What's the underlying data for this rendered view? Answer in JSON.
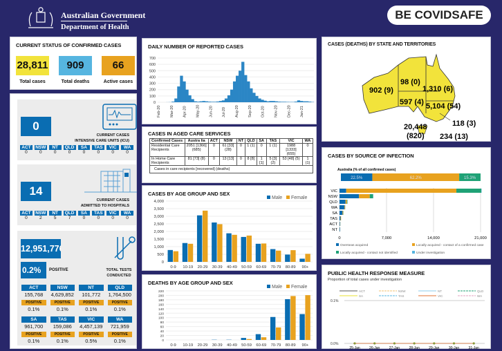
{
  "header": {
    "gov": "Australian Government",
    "dept": "Department of Health",
    "brand_a": "BE COVID",
    "brand_b": "SAFE"
  },
  "status": {
    "title": "CURRENT STATUS OF CONFIRMED CASES",
    "cards": [
      {
        "value": "28,811",
        "label": "Total cases",
        "color": "#f2e33b"
      },
      {
        "value": "909",
        "label": "Total deaths",
        "color": "#56b5e0"
      },
      {
        "value": "66",
        "label": "Active cases",
        "color": "#e8a21f"
      }
    ]
  },
  "icu": {
    "value": "0",
    "label1": "CURRENT CASES",
    "label2": "INTENSIVE CARE UNITS (ICU)",
    "states": [
      "ACT",
      "NSW",
      "NT",
      "QLD",
      "SA",
      "TAS",
      "VIC",
      "WA"
    ],
    "values": [
      "0",
      "0",
      "0",
      "0",
      "0",
      "0",
      "0",
      "0"
    ]
  },
  "hosp": {
    "value": "14",
    "label1": "CURRENT CASES",
    "label2": "ADMITTED TO HOSPITALS",
    "states": [
      "ACT",
      "NSW",
      "NT",
      "QLD",
      "SA",
      "TAS",
      "VIC",
      "WA"
    ],
    "values": [
      "0",
      "2",
      "5",
      "7",
      "0",
      "0",
      "0",
      "0"
    ]
  },
  "tests": {
    "value": "12,951,776",
    "pct": "0.2%",
    "pct_label": "POSITIVE",
    "label1": "TOTAL TESTS",
    "label2": "CONDUCTED",
    "positive_label": "POSITIVE",
    "states": [
      {
        "s": "ACT",
        "n": "155,768",
        "p": "0.1%"
      },
      {
        "s": "NSW",
        "n": "4,629,852",
        "p": "0.1%"
      },
      {
        "s": "NT",
        "n": "101,772",
        "p": "0.1%"
      },
      {
        "s": "QLD",
        "n": "1,764,500",
        "p": "0.1%"
      },
      {
        "s": "SA",
        "n": "961,700",
        "p": "0.1%"
      },
      {
        "s": "TAS",
        "n": "159,086",
        "p": "0.1%"
      },
      {
        "s": "VIC",
        "n": "4,457,139",
        "p": "0.5%"
      },
      {
        "s": "WA",
        "n": "721,959",
        "p": "0.1%"
      }
    ]
  },
  "aged": {
    "title": "CASES IN AGED CARE SERVICES",
    "headers": [
      "Confirmed Cases",
      "Austra lia",
      "ACT",
      "NSW",
      "NT",
      "QLD",
      "SA",
      "TAS",
      "VIC",
      "WA"
    ],
    "rows": [
      [
        "Residential Care Recipients",
        "2051 [1366] (685)",
        "0",
        "61 [33] (28)",
        "0",
        "1 (1)",
        "0",
        "1 (1)",
        "1988 [1333] (655)",
        "0"
      ],
      [
        "In Home Care Recipients",
        "81 [73] (8)",
        "0",
        "13 [13]",
        "0",
        "8 [8]",
        "1 [1]",
        "5 [3] (2)",
        "53 [48] (5)",
        "1 (1)"
      ]
    ],
    "note": "Cases in care recipients [recovered] (deaths)"
  },
  "map": {
    "title": "CASES (DEATHS) BY STATE AND TERRITORIES",
    "labels": {
      "WA": "902 (9)",
      "NT": "98 (0)",
      "QLD": "1,310 (6)",
      "SA": "597 (4)",
      "NSW": "5,104 (54)",
      "ACT": "118 (3)",
      "VIC1": "20,448",
      "VIC2": "(820)",
      "TAS": "234 (13)"
    }
  },
  "chart_data": [
    {
      "id": "daily",
      "type": "bar",
      "title": "DAILY NUMBER OF REPORTED CASES",
      "ylim": [
        0,
        700
      ],
      "yticks": [
        0,
        100,
        200,
        300,
        400,
        500,
        600,
        700
      ],
      "xticks": [
        "Feb-20",
        "Mar-20",
        "Apr-20",
        "May-20",
        "Jun-20",
        "Jul-20",
        "Aug-20",
        "Sep-20",
        "Oct-20",
        "Nov-20",
        "Dec-20",
        "Jan-21"
      ],
      "values": [
        0,
        0,
        0,
        1,
        2,
        10,
        60,
        250,
        420,
        330,
        200,
        110,
        50,
        15,
        10,
        15,
        20,
        15,
        10,
        8,
        8,
        12,
        20,
        30,
        60,
        110,
        200,
        330,
        420,
        500,
        640,
        430,
        330,
        220,
        150,
        100,
        60,
        40,
        25,
        15,
        20,
        20,
        15,
        10,
        8,
        8,
        6,
        5,
        5,
        10,
        30,
        20,
        15,
        15,
        10,
        5
      ]
    },
    {
      "id": "age",
      "type": "bar",
      "title": "CASES BY AGE GROUP AND SEX",
      "ylim": [
        0,
        4000
      ],
      "yticks": [
        0,
        500,
        1000,
        1500,
        2000,
        2500,
        3000,
        3500,
        4000
      ],
      "categories": [
        "0-9",
        "10-19",
        "20-29",
        "30-39",
        "40-49",
        "50-59",
        "60-69",
        "70-79",
        "80-89",
        "90+"
      ],
      "series": [
        {
          "name": "Male",
          "color": "#0a6db2",
          "values": [
            780,
            1240,
            3060,
            2590,
            1880,
            1640,
            1190,
            840,
            480,
            210
          ]
        },
        {
          "name": "Female",
          "color": "#e8a21f",
          "values": [
            700,
            1190,
            3370,
            2480,
            1780,
            1730,
            1210,
            740,
            770,
            530
          ]
        }
      ]
    },
    {
      "id": "deaths",
      "type": "bar",
      "title": "DEATHS BY AGE GROUP AND SEX",
      "ylim": [
        0,
        220
      ],
      "yticks": [
        0,
        20,
        40,
        60,
        80,
        100,
        120,
        140,
        160,
        180,
        200,
        220
      ],
      "categories": [
        "0-9",
        "10-19",
        "20-29",
        "30-39",
        "40-49",
        "50-59",
        "60-69",
        "70-79",
        "80-89",
        "90+"
      ],
      "series": [
        {
          "name": "Male",
          "color": "#0a6db2",
          "values": [
            0,
            0,
            0,
            1,
            1,
            9,
            26,
            103,
            183,
            116
          ]
        },
        {
          "name": "Female",
          "color": "#e8a21f",
          "values": [
            0,
            0,
            0,
            0,
            0,
            4,
            12,
            56,
            197,
            201
          ]
        }
      ]
    },
    {
      "id": "source",
      "type": "bar",
      "title": "CASES BY SOURCE OF INFECTION",
      "subtitle": "Australia (% of all confirmed cases)",
      "overall": [
        {
          "label": "22.5%",
          "value": 22.5
        },
        {
          "label": "62.2%",
          "value": 62.2
        },
        {
          "label": "15.3%",
          "value": 15.3
        }
      ],
      "categories": [
        "VIC",
        "NSW",
        "QLD",
        "WA",
        "SA",
        "TAS",
        "ACT",
        "NT"
      ],
      "xlim": [
        0,
        21000
      ],
      "xticks": [
        "0",
        "7,000",
        "14,000",
        "21,000"
      ],
      "series": [
        {
          "name": "Overseas acquired",
          "color": "#0a6db2",
          "values": [
            1000,
            2900,
            900,
            750,
            450,
            150,
            80,
            80
          ]
        },
        {
          "name": "Locally acquired - contact of a confirmed case",
          "color": "#e8a21f",
          "values": [
            16400,
            1600,
            200,
            80,
            100,
            80,
            30,
            15
          ]
        },
        {
          "name": "Locally acquired - contact not identified",
          "color": "#1fa276",
          "values": [
            3700,
            500,
            80,
            20,
            30,
            5,
            10,
            3
          ]
        },
        {
          "name": "Under investigation",
          "color": "#56b5e0",
          "values": [
            50,
            20,
            10,
            5,
            5,
            0,
            0,
            0
          ]
        }
      ]
    },
    {
      "id": "phrm",
      "type": "line",
      "title": "PUBLIC HEALTH RESPONSE MEASURE",
      "subtitle": "Proportion of total cases under investigation",
      "yticks": [
        "0.1%",
        "0.0%"
      ],
      "x": [
        "25-Jan",
        "26-Jan",
        "27-Jan",
        "28-Jan",
        "29-Jan",
        "30-Jan",
        "31-Jan"
      ],
      "series": [
        {
          "name": "ACT",
          "color": "#555"
        },
        {
          "name": "NSW",
          "color": "#f0c070"
        },
        {
          "name": "NT",
          "color": "#8ccbea"
        },
        {
          "name": "QLD",
          "color": "#1fa276"
        },
        {
          "name": "SA",
          "color": "#e8e030"
        },
        {
          "name": "TAS",
          "color": "#56b5e0"
        },
        {
          "name": "VIC",
          "color": "#e07030"
        },
        {
          "name": "WA",
          "color": "#e0a0c0"
        }
      ],
      "values": [
        0,
        0,
        0,
        0,
        0,
        0,
        0
      ]
    }
  ]
}
